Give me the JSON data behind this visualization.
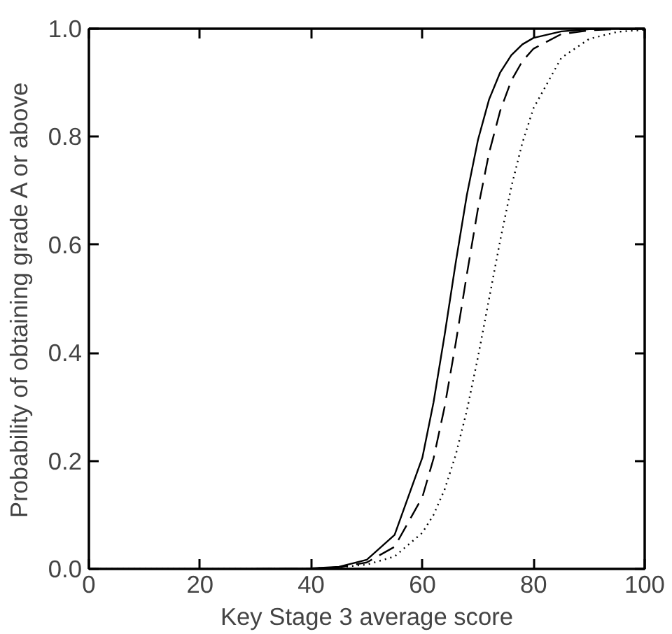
{
  "chart_data": {
    "type": "line",
    "xlabel": "Key Stage 3 average score",
    "ylabel": "Probability of obtaining grade A or above",
    "x": [
      0,
      10,
      20,
      30,
      40,
      45,
      50,
      55,
      60,
      62,
      64,
      66,
      68,
      70,
      72,
      74,
      76,
      78,
      80,
      85,
      90,
      95,
      100
    ],
    "xlim": [
      0,
      100
    ],
    "ylim": [
      0,
      1
    ],
    "xticks": [
      0,
      20,
      40,
      60,
      80,
      100
    ],
    "yticks": [
      {
        "value": 0,
        "label": "0.0"
      },
      {
        "value": 0.2,
        "label": "0.2"
      },
      {
        "value": 0.4,
        "label": "0.4"
      },
      {
        "value": 0.6,
        "label": "0.6"
      },
      {
        "value": 0.8,
        "label": "0.8"
      },
      {
        "value": 1,
        "label": "1.0"
      }
    ],
    "grid": false,
    "marker": "none",
    "series": [
      {
        "color": "#000000",
        "line_style": "solid",
        "values": [
          0,
          0,
          0,
          0,
          0.001,
          0.004,
          0.017,
          0.063,
          0.206,
          0.308,
          0.433,
          0.567,
          0.692,
          0.794,
          0.869,
          0.919,
          0.951,
          0.971,
          0.983,
          0.995,
          0.999,
          1,
          1
        ]
      },
      {
        "color": "#000000",
        "line_style": "dashed",
        "x": [
          30,
          40,
          45,
          50,
          55,
          60,
          62,
          64,
          66,
          68,
          70,
          72,
          74,
          76,
          78,
          80,
          85,
          90,
          95,
          100
        ],
        "values": [
          0,
          0.001,
          0.003,
          0.012,
          0.041,
          0.133,
          0.204,
          0.3,
          0.418,
          0.545,
          0.667,
          0.77,
          0.848,
          0.904,
          0.94,
          0.963,
          0.99,
          0.997,
          0.999,
          0.999
        ]
      },
      {
        "color": "#000000",
        "line_style": "dotted",
        "values": [
          0,
          0,
          0,
          0,
          0.001,
          0.003,
          0.008,
          0.023,
          0.067,
          0.1,
          0.147,
          0.211,
          0.293,
          0.392,
          0.5,
          0.608,
          0.707,
          0.789,
          0.853,
          0.946,
          0.981,
          0.994,
          0.998
        ]
      }
    ]
  }
}
